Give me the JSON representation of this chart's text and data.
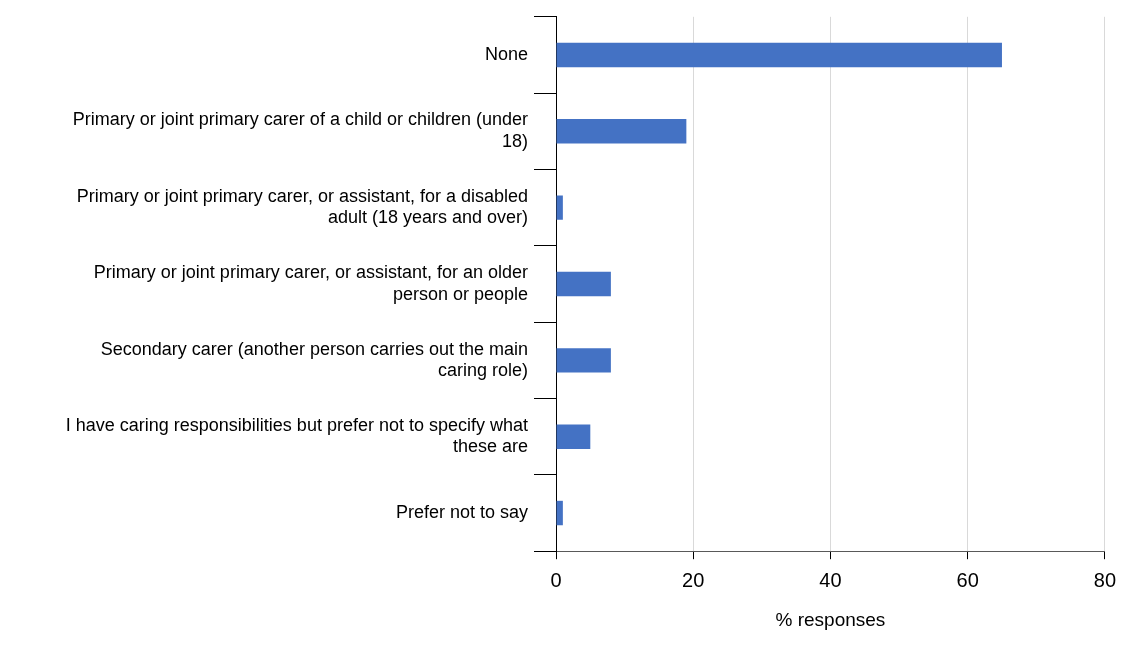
{
  "chart_data": {
    "type": "bar",
    "orientation": "horizontal",
    "xlabel": "% responses",
    "categories": [
      "None",
      "Primary or joint primary carer of a child or children (under 18)",
      "Primary or joint primary carer, or assistant, for a disabled adult (18 years and over)",
      "Primary or joint primary carer, or assistant, for an older person or people",
      "Secondary carer (another person carries out the main caring role)",
      "I have caring responsibilities but prefer not to specify what these are",
      "Prefer not to say"
    ],
    "values": [
      65,
      19,
      1,
      8,
      8,
      5,
      1
    ],
    "color": "#4472c4",
    "xlim": [
      0,
      80
    ],
    "xticks": [
      0,
      20,
      40,
      60,
      80
    ],
    "grid": "x",
    "legend": false
  }
}
